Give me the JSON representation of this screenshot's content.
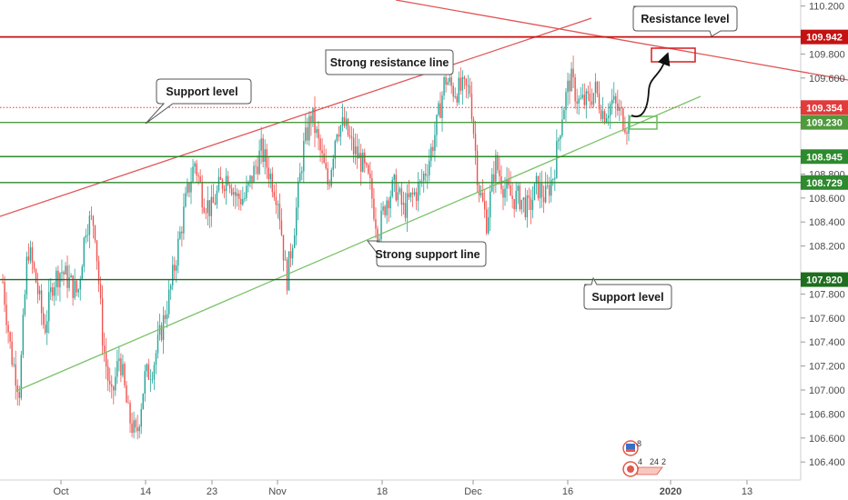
{
  "chart_data": {
    "type": "candlestick",
    "symbol_hint": "USDJPY",
    "y_axis": {
      "range": [
        106.25,
        110.25
      ],
      "ticks": [
        106.4,
        106.6,
        106.8,
        107.0,
        107.2,
        107.4,
        107.6,
        107.8,
        108.2,
        108.4,
        108.6,
        108.8,
        109.6,
        109.8,
        110.2
      ],
      "tick_labels": [
        "106.400",
        "106.600",
        "106.800",
        "107.000",
        "107.200",
        "107.400",
        "107.600",
        "107.800",
        "108.200",
        "108.400",
        "108.600",
        "108.800",
        "109.600",
        "109.800",
        "110.200"
      ]
    },
    "x_axis": {
      "labels": [
        "Oct",
        "14",
        "23",
        "Nov",
        "18",
        "Dec",
        "16",
        "2020",
        "13"
      ],
      "label_bold": [
        false,
        false,
        false,
        false,
        false,
        false,
        false,
        true,
        false
      ]
    },
    "horizontal_levels": [
      {
        "price": 109.942,
        "label": "109.942",
        "color": "#c41212",
        "kind": "resistance"
      },
      {
        "price": 109.354,
        "label": "109.354",
        "color": "#e23b3b",
        "kind": "current-price",
        "dotted": true
      },
      {
        "price": 109.23,
        "label": "109.230",
        "color": "#4f9a3c",
        "kind": "support"
      },
      {
        "price": 108.945,
        "label": "108.945",
        "color": "#2e8a2e",
        "kind": "support"
      },
      {
        "price": 108.729,
        "label": "108.729",
        "color": "#2e8a2e",
        "kind": "support"
      },
      {
        "price": 107.92,
        "label": "107.920",
        "color": "#1f6e1f",
        "kind": "support"
      }
    ],
    "annotations": {
      "resistance_level": "Resistance level",
      "strong_resistance_line": "Strong resistance line",
      "support_level_left": "Support level",
      "strong_support_line": "Strong support line",
      "support_level_right": "Support level"
    },
    "events": {
      "top_count": "8",
      "bottom_counts": [
        "4",
        "24",
        "2"
      ]
    },
    "ohlc_waypoints": [
      [
        107.9,
        107.3,
        107.0,
        108.2,
        107.9,
        107.5,
        107.9,
        108.0,
        107.9,
        107.8,
        108.4,
        108.4,
        107.4,
        106.9,
        107.3,
        106.8,
        106.6,
        107.1,
        107.2,
        107.5,
        107.8,
        108.2,
        108.6,
        108.9,
        108.6,
        108.5,
        108.7,
        108.8,
        108.6,
        108.6,
        108.8,
        109.0,
        108.8,
        108.6,
        107.9,
        108.4,
        109.0,
        109.3,
        109.0,
        108.7,
        109.2,
        109.2,
        109.0,
        108.9,
        108.7,
        108.3,
        108.6,
        108.7,
        108.5,
        108.6,
        108.7,
        108.9,
        109.2,
        109.6,
        109.5,
        109.5,
        109.5,
        108.7,
        108.4,
        108.9,
        108.7,
        108.6,
        108.6,
        108.5,
        108.7,
        108.6,
        108.8,
        109.3,
        109.6,
        109.4,
        109.4,
        109.5,
        109.3,
        109.4,
        109.3,
        109.2
      ]
    ]
  }
}
